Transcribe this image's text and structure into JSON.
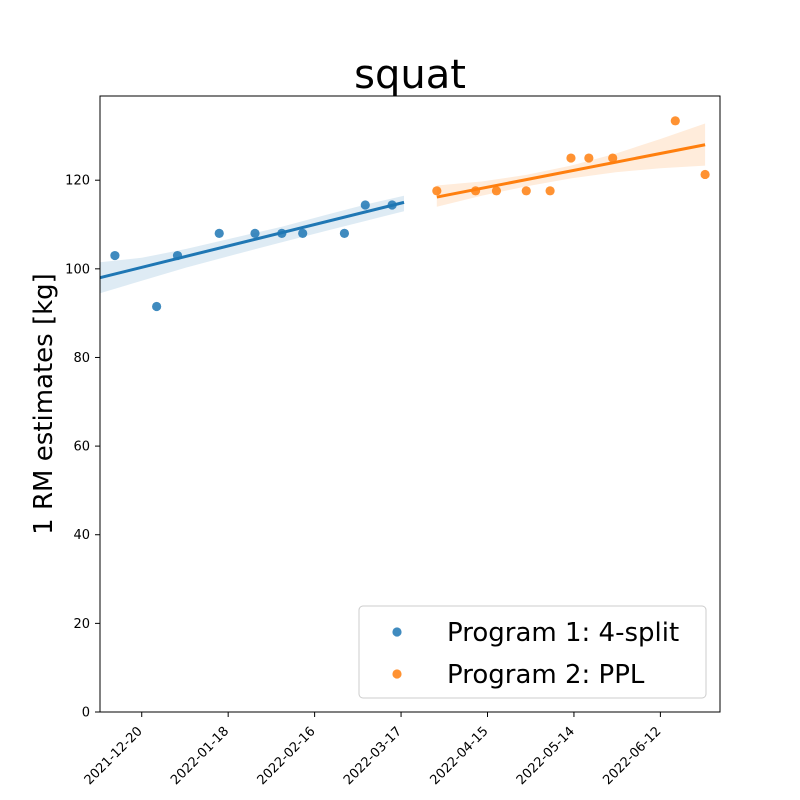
{
  "chart_data": {
    "type": "scatter",
    "title": "squat",
    "xlabel": "",
    "ylabel": "1 RM estimates [kg]",
    "x_ticks": [
      "2021-12-20",
      "2022-01-18",
      "2022-02-16",
      "2022-03-17",
      "2022-04-15",
      "2022-05-14",
      "2022-06-12"
    ],
    "x_range": [
      "2021-12-06",
      "2022-07-02"
    ],
    "ylim": [
      0,
      139
    ],
    "y_ticks": [
      0,
      20,
      40,
      60,
      80,
      100,
      120
    ],
    "grid": false,
    "legend_position": "lower-right",
    "series": [
      {
        "name": "Program 1: 4-split",
        "color": "#1f77b4",
        "points": [
          {
            "x": "2021-12-11",
            "y": 103
          },
          {
            "x": "2021-12-25",
            "y": 91.5
          },
          {
            "x": "2022-01-01",
            "y": 103
          },
          {
            "x": "2022-01-15",
            "y": 108
          },
          {
            "x": "2022-01-27",
            "y": 108
          },
          {
            "x": "2022-02-05",
            "y": 108
          },
          {
            "x": "2022-02-12",
            "y": 108
          },
          {
            "x": "2022-02-26",
            "y": 108
          },
          {
            "x": "2022-03-05",
            "y": 114.4
          },
          {
            "x": "2022-03-14",
            "y": 114.4
          }
        ],
        "trend": {
          "start": {
            "x": "2021-12-06",
            "y": 98
          },
          "end": {
            "x": "2022-03-18",
            "y": 115
          }
        },
        "ci": {
          "x": [
            "2021-12-06",
            "2021-12-20",
            "2022-01-04",
            "2022-01-20",
            "2022-02-05",
            "2022-02-20",
            "2022-03-05",
            "2022-03-18"
          ],
          "lower": [
            94.5,
            97.3,
            100.3,
            103.2,
            106.0,
            108.6,
            110.8,
            113.0
          ],
          "upper": [
            101.5,
            102.5,
            104.5,
            107.0,
            109.5,
            112.2,
            114.5,
            116.5
          ]
        }
      },
      {
        "name": "Program 2: PPL",
        "color": "#ff7f0e",
        "points": [
          {
            "x": "2022-03-29",
            "y": 117.6
          },
          {
            "x": "2022-04-11",
            "y": 117.6
          },
          {
            "x": "2022-04-18",
            "y": 117.6
          },
          {
            "x": "2022-04-28",
            "y": 117.6
          },
          {
            "x": "2022-05-06",
            "y": 117.6
          },
          {
            "x": "2022-05-13",
            "y": 125
          },
          {
            "x": "2022-05-19",
            "y": 125
          },
          {
            "x": "2022-05-27",
            "y": 125
          },
          {
            "x": "2022-06-17",
            "y": 133.4
          },
          {
            "x": "2022-06-27",
            "y": 121.3
          }
        ],
        "trend": {
          "start": {
            "x": "2022-03-29",
            "y": 116.2
          },
          "end": {
            "x": "2022-06-27",
            "y": 128
          }
        },
        "ci": {
          "x": [
            "2022-03-29",
            "2022-04-13",
            "2022-04-28",
            "2022-05-13",
            "2022-05-28",
            "2022-06-12",
            "2022-06-27"
          ],
          "lower": [
            114.0,
            116.5,
            118.6,
            120.4,
            121.8,
            122.7,
            123.3
          ],
          "upper": [
            118.8,
            119.7,
            121.2,
            123.3,
            126.0,
            129.3,
            132.8
          ]
        }
      }
    ]
  }
}
